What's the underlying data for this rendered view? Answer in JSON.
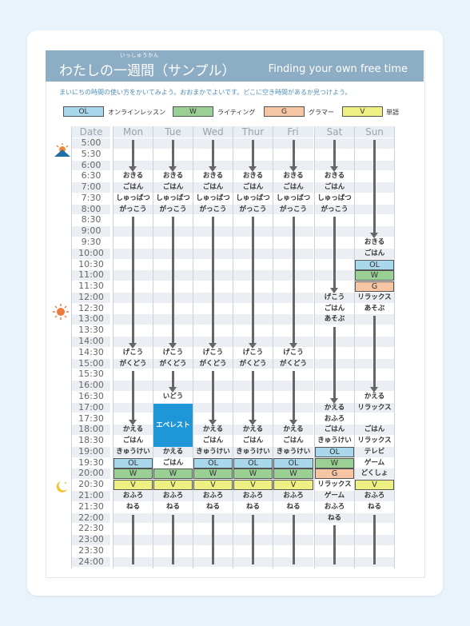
{
  "header": {
    "title": "わたしの一週間（サンプル）",
    "ruby": "いっしゅうかん",
    "subtitle": "Finding your own free time"
  },
  "intro": "まいにちの時間の使い方をかいてみよう。おおまかでよいです。どこに空き時間があるか見つけよう。",
  "legend": [
    {
      "code": "OL",
      "label": "オンラインレッスン",
      "color": "#a9d8ec"
    },
    {
      "code": "W",
      "label": "ライティング",
      "color": "#9bd095"
    },
    {
      "code": "G",
      "label": "グラマー",
      "color": "#f6c6a4"
    },
    {
      "code": "V",
      "label": "単語",
      "color": "#eef083"
    }
  ],
  "columns": {
    "date": "Date",
    "days": [
      "Mon",
      "Tue",
      "Wed",
      "Thur",
      "Fri",
      "Sat",
      "Sun"
    ]
  },
  "times": [
    "5:00",
    "5:30",
    "6:00",
    "6:30",
    "7:00",
    "7:30",
    "8:00",
    "8:30",
    "9:00",
    "9:30",
    "10:00",
    "10:30",
    "11:00",
    "11:30",
    "12:00",
    "12:30",
    "13:00",
    "13:30",
    "14:00",
    "14:30",
    "15:00",
    "15:30",
    "16:00",
    "16:30",
    "17:00",
    "17:30",
    "18:00",
    "18:30",
    "19:00",
    "19:30",
    "20:00",
    "20:30",
    "21:00",
    "21:30",
    "22:00",
    "22:30",
    "23:00",
    "23:30",
    "24:00"
  ],
  "events": {
    "okiru": "おきる",
    "gohan": "ごはん",
    "shuppatsu": "しゅっぱつ",
    "gakkou": "がっこう",
    "gekou": "げこう",
    "gakudou": "がくどう",
    "kaeru": "かえる",
    "kyuukei": "きゅうけい",
    "ofuro": "おふろ",
    "neru": "ねる",
    "idou": "いどう",
    "everest": "エベレスト",
    "relax": "リラックス",
    "asobu": "あそぶ",
    "game": "ゲーム",
    "terebi": "テレビ",
    "dokusho": "どくしょ"
  }
}
